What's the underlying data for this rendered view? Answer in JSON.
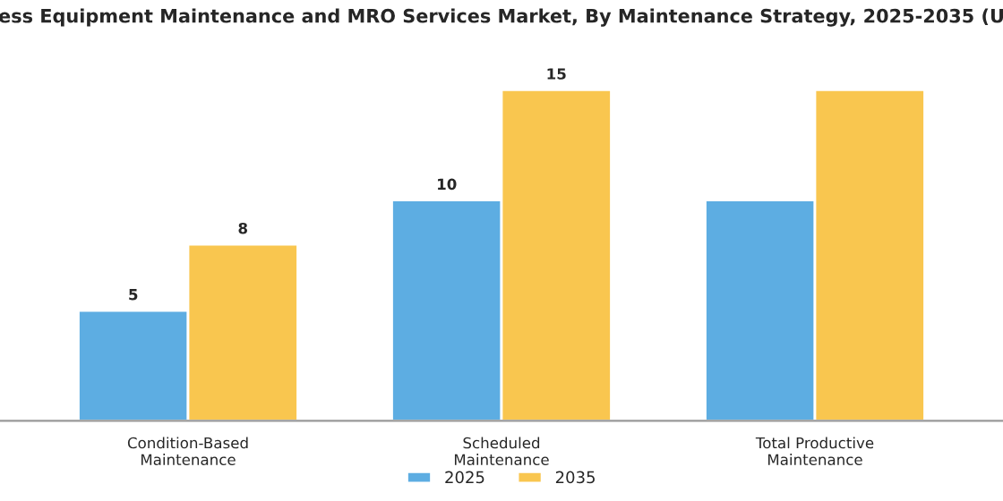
{
  "chart_data": {
    "type": "bar",
    "title": "ess Equipment Maintenance and MRO Services Market, By Maintenance Strategy, 2025-2035 (U",
    "categories": [
      "Condition-Based\nMaintenance",
      "Scheduled\nMaintenance",
      "Total Productive\nMaintenance"
    ],
    "series": [
      {
        "name": "2025",
        "color": "#5dade2",
        "values": [
          5,
          10,
          10
        ],
        "value_labels": [
          "5",
          "10",
          null
        ]
      },
      {
        "name": "2035",
        "color": "#f9c64f",
        "values": [
          8,
          15,
          15
        ],
        "value_labels": [
          "8",
          "15",
          null
        ]
      }
    ],
    "legend": "bottom",
    "grid": false
  }
}
